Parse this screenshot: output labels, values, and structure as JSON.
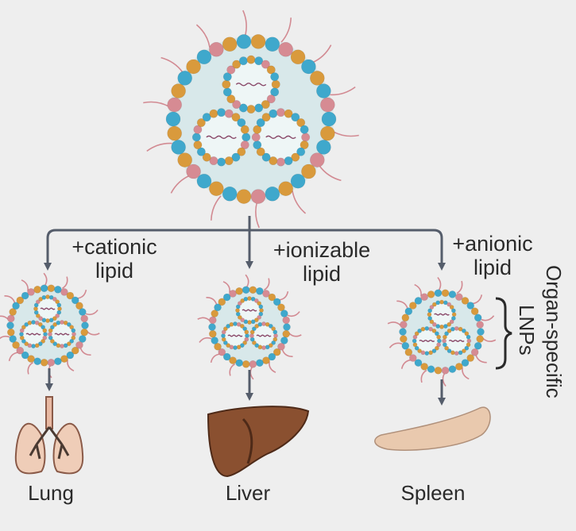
{
  "branches": [
    {
      "lipid_line1": "+cationic",
      "lipid_line2": "lipid",
      "organ": "Lung"
    },
    {
      "lipid_line1": "+ionizable",
      "lipid_line2": "lipid",
      "organ": "Liver"
    },
    {
      "lipid_line1": "+anionic",
      "lipid_line2": "lipid",
      "organ": "Spleen"
    }
  ],
  "side_label": {
    "line1": "Organ-specific",
    "line2": "LNPs"
  },
  "colors": {
    "background": "#eeeeee",
    "connector": "#555d6b",
    "lipid_blue": "#3fa8cc",
    "lipid_orange": "#d99a3c",
    "lipid_pink": "#d68b93",
    "core_fill": "#d8e8ea",
    "liver": "#8a5030",
    "spleen": "#e9c9ae",
    "lung": "#efcdb8"
  },
  "icons": [
    "lnp-particle-icon",
    "lung-icon",
    "liver-icon",
    "spleen-icon"
  ]
}
